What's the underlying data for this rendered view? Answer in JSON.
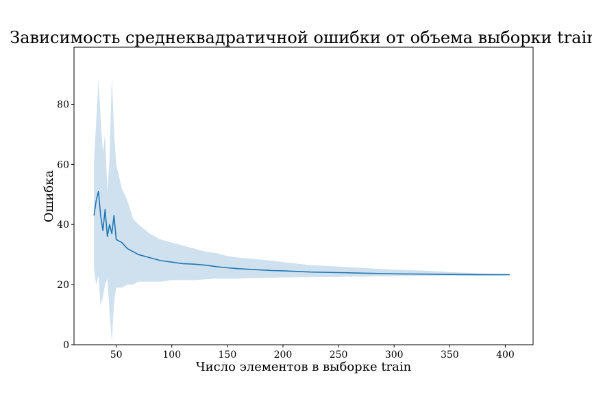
{
  "chart_data": {
    "type": "line",
    "title": "Зависимость среднеквадратичной ошибки от объема выборки train",
    "xlabel": "Число элементов в выборке train",
    "ylabel": "Ошибка",
    "xlim": [
      12,
      425
    ],
    "ylim": [
      0,
      99
    ],
    "xticks": [
      50,
      100,
      150,
      200,
      250,
      300,
      350,
      400
    ],
    "yticks": [
      0,
      20,
      40,
      60,
      80
    ],
    "grid": false,
    "legend": "none",
    "series": [
      {
        "line_color": "#1f77b4",
        "band_color": "#cfe0ee",
        "x": [
          30,
          32,
          34,
          36,
          38,
          40,
          42,
          44,
          46,
          48,
          50,
          55,
          60,
          65,
          70,
          80,
          90,
          100,
          110,
          120,
          130,
          140,
          150,
          160,
          175,
          190,
          200,
          225,
          250,
          275,
          300,
          325,
          350,
          375,
          404
        ],
        "mean": [
          43,
          48,
          51,
          43,
          38,
          45,
          36,
          40,
          37,
          43,
          35,
          34,
          32,
          31,
          30,
          29,
          28,
          27.5,
          27,
          26.8,
          26.5,
          26,
          25.6,
          25.3,
          25,
          24.7,
          24.6,
          24.2,
          24,
          23.8,
          23.6,
          23.5,
          23.4,
          23.3,
          23.3
        ],
        "lower": [
          25,
          20,
          23,
          13,
          16,
          20,
          22,
          11,
          1,
          14,
          19,
          19,
          20,
          20,
          21,
          21,
          21,
          21.5,
          21.5,
          21.5,
          21.8,
          22,
          22,
          22,
          22.2,
          22.3,
          22.4,
          22.5,
          22.6,
          22.7,
          22.8,
          22.9,
          23,
          23,
          23.1
        ],
        "upper": [
          61,
          74,
          88,
          75,
          64,
          70,
          51,
          62,
          89,
          71,
          60,
          52,
          48,
          42,
          40,
          37,
          35,
          34,
          33,
          32,
          31,
          30.5,
          29.5,
          29,
          28.5,
          28,
          27.5,
          26.5,
          26,
          25.5,
          25,
          24.7,
          24.2,
          23.8,
          23.5
        ]
      }
    ]
  }
}
